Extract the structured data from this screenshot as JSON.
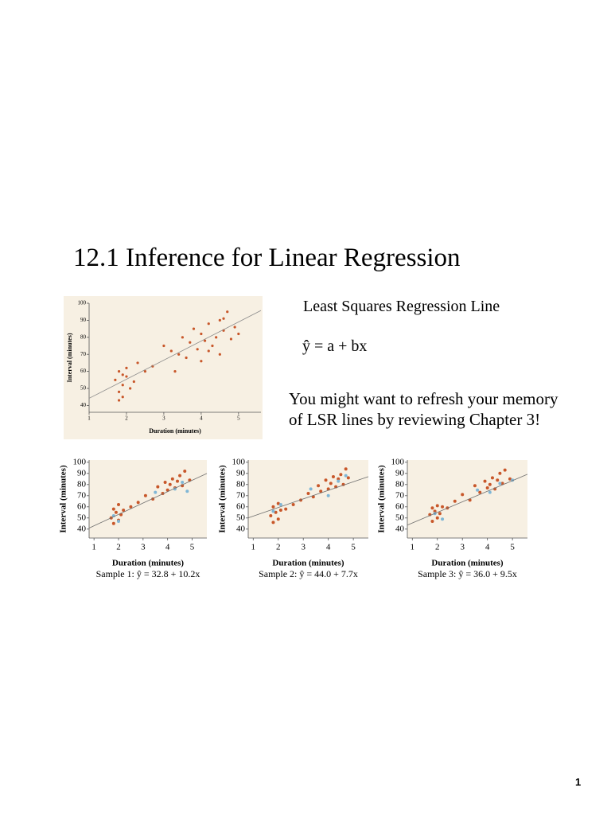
{
  "title": "12.1 Inference for Linear Regression",
  "lsr_heading": "Least Squares Regression Line",
  "equation": "ŷ = a + bx",
  "note": "You might want to refresh your memory of LSR lines by reviewing Chapter 3!",
  "page_number": "1",
  "chart_data": [
    {
      "type": "scatter",
      "x_label": "Duration (minutes)",
      "y_label": "Interval (minutes)",
      "xlim": [
        1,
        5.6
      ],
      "ylim": [
        36,
        100
      ],
      "xticks": [
        1,
        2,
        3,
        4,
        5
      ],
      "yticks": [
        40,
        50,
        60,
        70,
        80,
        90,
        100
      ],
      "fit_line": {
        "intercept": 33,
        "slope": 11.2,
        "color": "#8a8a8a"
      },
      "series": [
        {
          "color": "#c8572a",
          "x": [
            1.7,
            1.8,
            1.8,
            1.9,
            1.9,
            2.0,
            2.0,
            2.1,
            1.8,
            1.9,
            2.2,
            2.3,
            2.5,
            2.7,
            3.0,
            3.2,
            3.4,
            3.5,
            3.6,
            3.7,
            3.8,
            3.9,
            4.0,
            4.0,
            4.1,
            4.2,
            4.3,
            4.4,
            4.5,
            4.5,
            4.6,
            4.7,
            4.8,
            4.9,
            5.0,
            3.3,
            4.2,
            4.6
          ],
          "values": [
            55,
            48,
            60,
            52,
            45,
            57,
            62,
            50,
            43,
            58,
            54,
            65,
            60,
            63,
            75,
            72,
            70,
            80,
            68,
            77,
            85,
            73,
            82,
            66,
            78,
            88,
            75,
            80,
            90,
            70,
            84,
            95,
            79,
            86,
            82,
            60,
            72,
            91
          ]
        }
      ]
    },
    {
      "type": "scatter",
      "x_label": "Duration (minutes)",
      "y_label": "Interval (minutes)",
      "caption": "Sample 1: ŷ = 32.8 + 10.2x",
      "xlim": [
        0.8,
        5.6
      ],
      "ylim": [
        32,
        102
      ],
      "xticks": [
        1,
        2,
        3,
        4,
        5
      ],
      "yticks": [
        40,
        50,
        60,
        70,
        80,
        90,
        100
      ],
      "fit_line": {
        "intercept": 32.8,
        "slope": 10.2,
        "color": "#6f6f6f"
      },
      "series": [
        {
          "color": "#c8572a",
          "x": [
            1.7,
            1.8,
            1.8,
            1.9,
            2.0,
            2.0,
            2.1,
            2.2,
            2.5,
            2.8,
            3.1,
            3.4,
            3.6,
            3.8,
            3.9,
            4.0,
            4.1,
            4.2,
            4.3,
            4.4,
            4.5,
            4.6,
            4.7,
            4.9
          ],
          "values": [
            50,
            58,
            45,
            55,
            62,
            48,
            53,
            57,
            60,
            64,
            70,
            67,
            78,
            72,
            82,
            75,
            80,
            85,
            77,
            83,
            88,
            79,
            92,
            84
          ]
        },
        {
          "color": "#7fb6d6",
          "x": [
            1.8,
            2.0,
            3.5,
            4.3,
            4.6,
            4.8
          ],
          "values": [
            52,
            47,
            73,
            76,
            82,
            74
          ]
        }
      ]
    },
    {
      "type": "scatter",
      "x_label": "Duration (minutes)",
      "y_label": "Interval (minutes)",
      "caption": "Sample 2: ŷ = 44.0 + 7.7x",
      "xlim": [
        0.8,
        5.6
      ],
      "ylim": [
        32,
        102
      ],
      "xticks": [
        1,
        2,
        3,
        4,
        5
      ],
      "yticks": [
        40,
        50,
        60,
        70,
        80,
        90,
        100
      ],
      "fit_line": {
        "intercept": 44.0,
        "slope": 7.7,
        "color": "#6f6f6f"
      },
      "series": [
        {
          "color": "#c8572a",
          "x": [
            1.7,
            1.8,
            1.8,
            1.9,
            2.0,
            2.0,
            2.1,
            2.3,
            2.6,
            2.9,
            3.2,
            3.4,
            3.6,
            3.7,
            3.9,
            4.0,
            4.1,
            4.2,
            4.3,
            4.4,
            4.5,
            4.6,
            4.7,
            4.8
          ],
          "values": [
            52,
            60,
            46,
            55,
            63,
            49,
            57,
            58,
            62,
            66,
            72,
            69,
            79,
            74,
            84,
            76,
            81,
            87,
            78,
            85,
            89,
            80,
            94,
            86
          ]
        },
        {
          "color": "#7fb6d6",
          "x": [
            1.8,
            2.1,
            3.3,
            4.0,
            4.4,
            4.7
          ],
          "values": [
            56,
            62,
            76,
            70,
            83,
            88
          ]
        }
      ]
    },
    {
      "type": "scatter",
      "x_label": "Duration (minutes)",
      "y_label": "Interval (minutes)",
      "caption": "Sample 3: ŷ = 36.0 + 9.5x",
      "xlim": [
        0.8,
        5.6
      ],
      "ylim": [
        32,
        102
      ],
      "xticks": [
        1,
        2,
        3,
        4,
        5
      ],
      "yticks": [
        40,
        50,
        60,
        70,
        80,
        90,
        100
      ],
      "fit_line": {
        "intercept": 36.0,
        "slope": 9.5,
        "color": "#6f6f6f"
      },
      "series": [
        {
          "color": "#c8572a",
          "x": [
            1.7,
            1.8,
            1.8,
            1.9,
            2.0,
            2.0,
            2.1,
            2.2,
            2.4,
            2.7,
            3.0,
            3.3,
            3.5,
            3.7,
            3.9,
            4.0,
            4.1,
            4.2,
            4.3,
            4.4,
            4.5,
            4.6,
            4.7,
            4.9
          ],
          "values": [
            53,
            59,
            47,
            56,
            61,
            50,
            54,
            60,
            59,
            65,
            71,
            66,
            79,
            73,
            83,
            77,
            80,
            86,
            76,
            84,
            90,
            81,
            93,
            85
          ]
        },
        {
          "color": "#7fb6d6",
          "x": [
            1.9,
            2.2,
            3.6,
            4.1,
            4.5,
            5.0
          ],
          "values": [
            54,
            49,
            75,
            73,
            81,
            84
          ]
        }
      ]
    }
  ]
}
